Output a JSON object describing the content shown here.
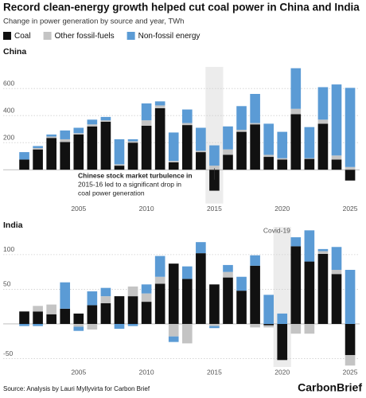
{
  "title": "Record clean-energy growth helped cut coal power in China and India",
  "subtitle": "Change in power generation by source and year, TWh",
  "source": "Source: Analysis by Lauri Myllyvirta for Carbon Brief",
  "logo": "CarbonBrief",
  "chart_data": [
    {
      "type": "stacked_bar",
      "title": "China",
      "x": [
        2001,
        2002,
        2003,
        2004,
        2005,
        2006,
        2007,
        2008,
        2009,
        2010,
        2011,
        2012,
        2013,
        2014,
        2015,
        2016,
        2017,
        2018,
        2019,
        2020,
        2021,
        2022,
        2023,
        2024,
        2025
      ],
      "series": [
        {
          "name": "Coal",
          "color": "#111111",
          "values": [
            75,
            150,
            235,
            205,
            260,
            320,
            355,
            30,
            200,
            325,
            455,
            55,
            330,
            130,
            -155,
            110,
            280,
            335,
            95,
            75,
            410,
            80,
            340,
            75,
            -80
          ]
        },
        {
          "name": "Other fossil-fuels",
          "color": "#c4c4c4",
          "values": [
            0,
            10,
            10,
            20,
            10,
            15,
            10,
            10,
            10,
            40,
            20,
            10,
            15,
            10,
            30,
            40,
            15,
            10,
            15,
            10,
            40,
            5,
            30,
            30,
            20
          ]
        },
        {
          "name": "Non-fossil energy",
          "color": "#5b9bd5",
          "values": [
            55,
            15,
            15,
            65,
            40,
            35,
            25,
            185,
            15,
            125,
            30,
            210,
            100,
            170,
            150,
            170,
            175,
            215,
            230,
            195,
            300,
            230,
            240,
            525,
            585
          ]
        }
      ],
      "xlim": [
        2000.5,
        2025.7
      ],
      "xticks": [
        2005,
        2010,
        2015,
        2020,
        2025
      ],
      "ylim": [
        -250,
        760
      ],
      "yticks": [
        200,
        400,
        600
      ],
      "grid": true,
      "highlight": 2015,
      "annotation": {
        "x": 2015,
        "lines": [
          "Chinese stock market turbulence in",
          "2015-16 led to a significant drop in",
          "coal power generation"
        ]
      }
    },
    {
      "type": "stacked_bar",
      "title": "India",
      "x": [
        2001,
        2002,
        2003,
        2004,
        2005,
        2006,
        2007,
        2008,
        2009,
        2010,
        2011,
        2012,
        2013,
        2014,
        2015,
        2016,
        2017,
        2018,
        2019,
        2020,
        2021,
        2022,
        2023,
        2024,
        2025
      ],
      "series": [
        {
          "color": "#111111",
          "values": [
            18,
            18,
            14,
            22,
            15,
            27,
            30,
            40,
            40,
            32,
            58,
            87,
            65,
            102,
            57,
            67,
            48,
            84,
            -2,
            -52,
            112,
            90,
            101,
            72,
            -45
          ]
        },
        {
          "color": "#c4c4c4",
          "values": [
            0,
            8,
            14,
            0,
            -4,
            -8,
            10,
            0,
            14,
            12,
            10,
            -18,
            -28,
            0,
            -3,
            8,
            0,
            -5,
            -3,
            0,
            -14,
            -14,
            4,
            6,
            -15
          ]
        },
        {
          "color": "#5b9bd5",
          "values": [
            -3,
            -3,
            0,
            38,
            -6,
            20,
            12,
            -7,
            -3,
            13,
            30,
            -8,
            18,
            16,
            -3,
            10,
            20,
            15,
            42,
            15,
            13,
            45,
            3,
            33,
            78
          ]
        }
      ],
      "xlim": [
        2000.5,
        2025.7
      ],
      "xticks": [
        2005,
        2010,
        2015,
        2020,
        2025
      ],
      "ylim": [
        -62,
        140
      ],
      "yticks": [
        -50,
        50,
        100
      ],
      "grid": true,
      "highlight": 2020,
      "highlight_label": "Covid-19"
    }
  ]
}
